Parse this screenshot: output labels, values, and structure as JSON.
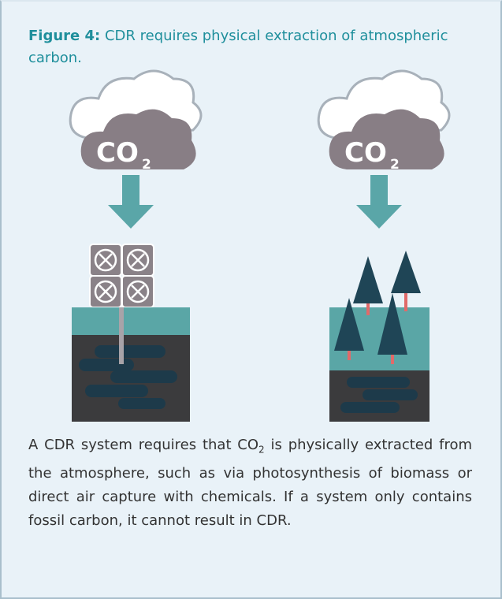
{
  "figure": {
    "label": "Figure 4:",
    "title": "CDR requires physical extraction of atmospheric carbon.",
    "clouds": [
      {
        "text": "CO",
        "subscript": "2"
      },
      {
        "text": "CO",
        "subscript": "2"
      }
    ],
    "caption": {
      "before": "A CDR system requires that CO",
      "subscript": "2",
      "after": " is physically extracted from the atmosphere, such as via photosynthesis of biomass or direct air capture with chemicals. If a system only contains fossil carbon, it cannot result in CDR."
    }
  }
}
